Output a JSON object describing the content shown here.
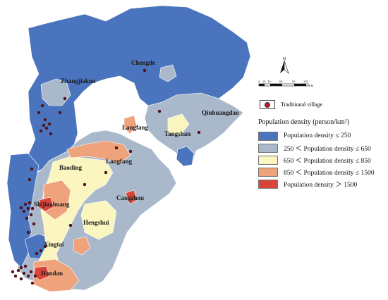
{
  "cities": [
    {
      "key": "chengde",
      "label": "Chengde"
    },
    {
      "key": "zhangjiakou",
      "label": "Zhangjiakou"
    },
    {
      "key": "qinhuangdao",
      "label": "Qinhuangdao"
    },
    {
      "key": "langfang_north",
      "label": "Langfang"
    },
    {
      "key": "tangshan",
      "label": "Tangshan"
    },
    {
      "key": "baoding",
      "label": "Baoding"
    },
    {
      "key": "langfang",
      "label": "Langfang"
    },
    {
      "key": "shijiazhuang",
      "label": "Shijiazhuang"
    },
    {
      "key": "cangzhou",
      "label": "Cangzhou"
    },
    {
      "key": "hengshui",
      "label": "Hengshui"
    },
    {
      "key": "xingtai",
      "label": "Xingtai"
    },
    {
      "key": "handan",
      "label": "Handan"
    }
  ],
  "north_label": "N",
  "scale": {
    "ticks": [
      "0",
      "15",
      "30",
      "60",
      "90",
      "120"
    ],
    "unit": "KM"
  },
  "village_legend": "Traditional village",
  "legend": {
    "title": "Population density (person/km²)",
    "items": [
      {
        "label": "Population density ≤ 250",
        "color": "#4a74bd"
      },
      {
        "label": "250 ＜ Population density ≤ 650",
        "color": "#a9b9cb"
      },
      {
        "label": "650 ＜ Population density ≤ 850",
        "color": "#fbf5c0"
      },
      {
        "label": "850 ＜ Population density ≤ 1500",
        "color": "#eea37c"
      },
      {
        "label": "Population density ＞ 1500",
        "color": "#d9443a"
      }
    ]
  },
  "colors": {
    "village": "#c8102e",
    "border": "#ffffff"
  }
}
